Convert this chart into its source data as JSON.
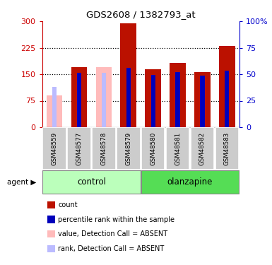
{
  "title": "GDS2608 / 1382793_at",
  "samples": [
    "GSM48559",
    "GSM48577",
    "GSM48578",
    "GSM48579",
    "GSM48580",
    "GSM48581",
    "GSM48582",
    "GSM48583"
  ],
  "red_values": [
    null,
    170,
    null,
    295,
    165,
    182,
    157,
    230
  ],
  "blue_values": [
    null,
    155,
    null,
    168,
    148,
    157,
    147,
    160
  ],
  "pink_values": [
    90,
    null,
    170,
    null,
    null,
    null,
    null,
    null
  ],
  "lightblue_values": [
    115,
    null,
    155,
    null,
    null,
    null,
    null,
    null
  ],
  "ylim_left": [
    0,
    300
  ],
  "ylim_right": [
    0,
    100
  ],
  "yticks_left": [
    0,
    75,
    150,
    225,
    300
  ],
  "yticks_right": [
    0,
    25,
    50,
    75,
    100
  ],
  "control_indices": [
    0,
    1,
    2,
    3
  ],
  "olanzapine_indices": [
    4,
    5,
    6,
    7
  ],
  "bar_width": 0.65,
  "blue_bar_width": 0.18,
  "bar_color_red": "#BB1100",
  "bar_color_blue": "#0000BB",
  "bar_color_pink": "#FFBBBB",
  "bar_color_lightblue": "#BBBBFF",
  "left_axis_color": "#CC0000",
  "right_axis_color": "#0000CC",
  "sample_box_color": "#CCCCCC",
  "control_color_light": "#BBFFBB",
  "olanzapine_color_dark": "#55DD55",
  "grid_color": "black",
  "grid_yticks": [
    75,
    150,
    225
  ]
}
